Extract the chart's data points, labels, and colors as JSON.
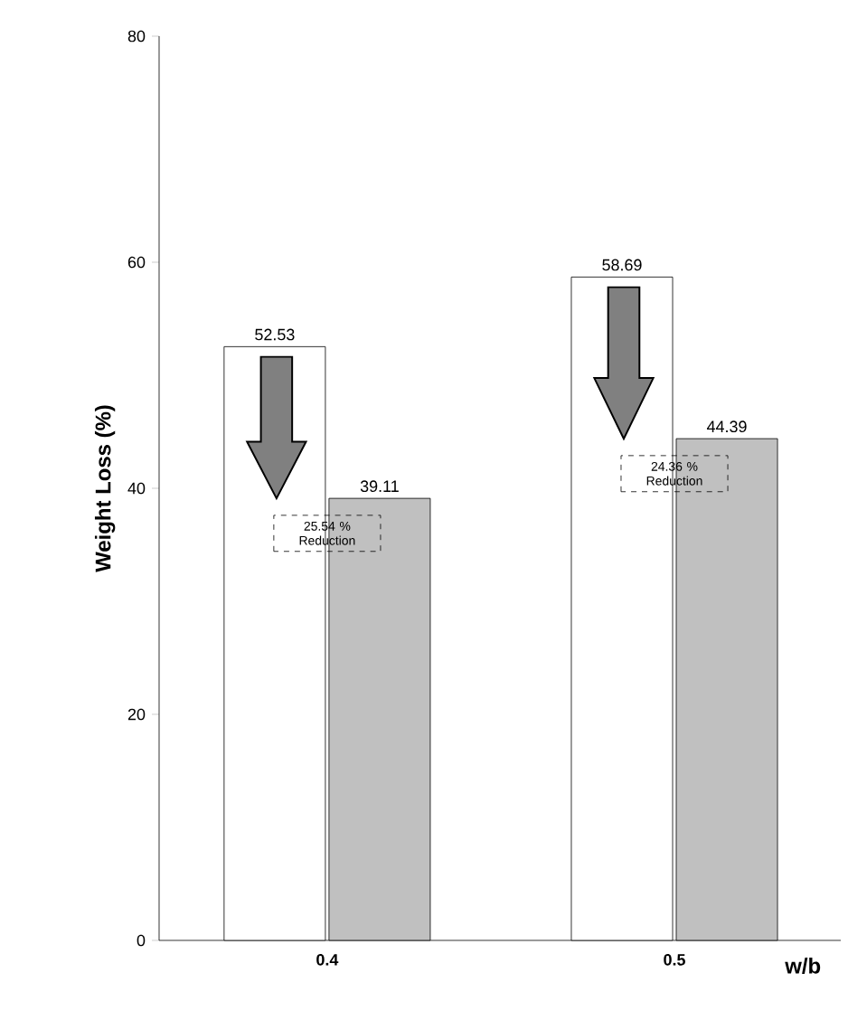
{
  "chart_data": {
    "type": "bar",
    "xlabel": "w/b",
    "ylabel": "Weight Loss (%)",
    "categories": [
      "0.4",
      "0.5"
    ],
    "series": [
      {
        "color": "#ffffff",
        "values": [
          52.53,
          58.69
        ]
      },
      {
        "color": "#c0c0c0",
        "values": [
          39.11,
          44.39
        ]
      }
    ],
    "ylim": [
      0,
      80
    ],
    "yticks": [
      0,
      20,
      40,
      60,
      80
    ],
    "data_labels": true,
    "grid": false,
    "annotations": [
      "25.54 % Reduction",
      "24.36 % Reduction"
    ]
  }
}
